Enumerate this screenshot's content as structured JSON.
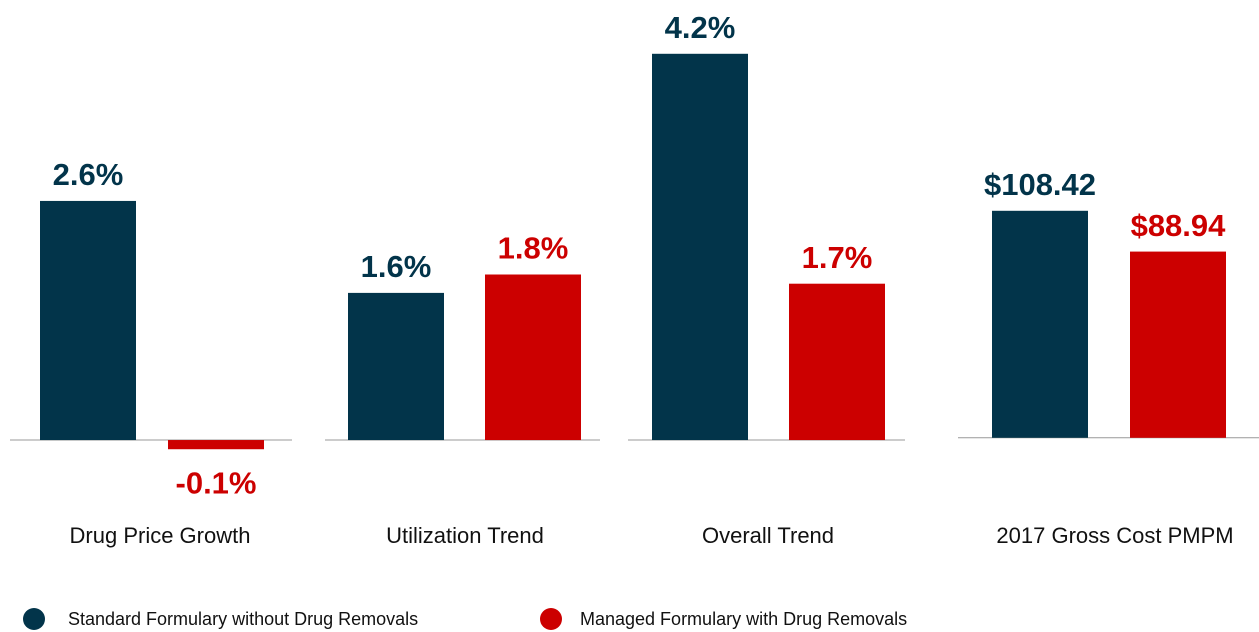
{
  "chart_data": [
    {
      "type": "bar",
      "categories": [
        "Drug Price Growth",
        "Utilization Trend",
        "Overall Trend"
      ],
      "series": [
        {
          "name": "Standard Formulary without Drug Removals",
          "color": "#02344a",
          "values": [
            2.6,
            1.6,
            4.2
          ],
          "value_labels": [
            "2.6%",
            "1.6%",
            "4.2%"
          ]
        },
        {
          "name": "Managed Formulary with Drug Removals",
          "color": "#cc0000",
          "values": [
            -0.1,
            1.8,
            1.7
          ],
          "value_labels": [
            "-0.1%",
            "1.8%",
            "1.7%"
          ]
        }
      ],
      "ylim": [
        -1,
        4.35
      ]
    },
    {
      "type": "bar",
      "categories": [
        "2017 Gross Cost PMPM"
      ],
      "series": [
        {
          "color": "#02344a",
          "values": [
            108.42
          ],
          "value_labels": [
            "$108.42"
          ]
        },
        {
          "color": "#cc0000",
          "values": [
            88.94
          ],
          "value_labels": [
            "$88.94"
          ]
        }
      ],
      "ylim": [
        -45,
        190
      ]
    }
  ]
}
